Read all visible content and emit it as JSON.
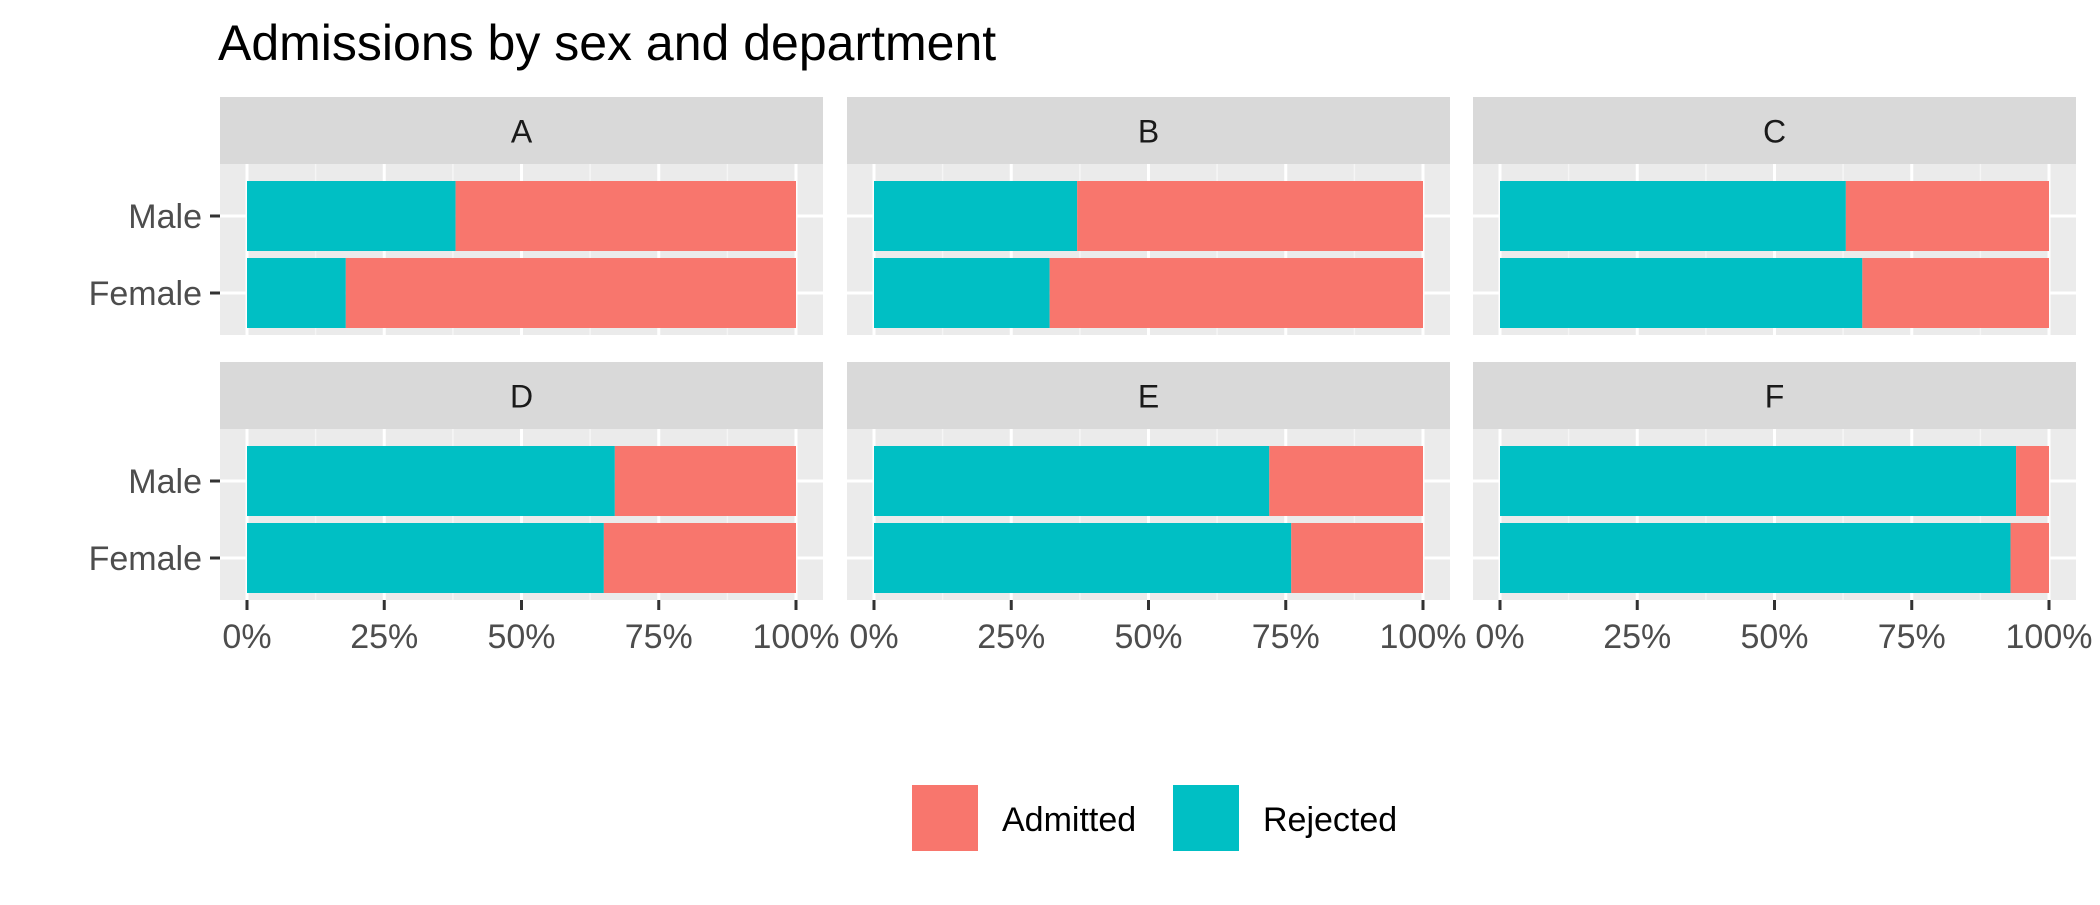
{
  "chart_data": {
    "type": "bar",
    "orientation": "horizontal",
    "stacked": true,
    "normalized": true,
    "title": "Admissions by sex and department",
    "categories": [
      "Male",
      "Female"
    ],
    "x_ticks": [
      "0%",
      "25%",
      "50%",
      "75%",
      "100%"
    ],
    "xlim": [
      0,
      100
    ],
    "grid": true,
    "legend_position": "bottom",
    "series": [
      {
        "name": "Admitted",
        "color": "#F8766D"
      },
      {
        "name": "Rejected",
        "color": "#00BFC4"
      }
    ],
    "panels": [
      {
        "label": "A",
        "values": {
          "Male": {
            "Rejected": 38,
            "Admitted": 62
          },
          "Female": {
            "Rejected": 18,
            "Admitted": 82
          }
        }
      },
      {
        "label": "B",
        "values": {
          "Male": {
            "Rejected": 37,
            "Admitted": 63
          },
          "Female": {
            "Rejected": 32,
            "Admitted": 68
          }
        }
      },
      {
        "label": "C",
        "values": {
          "Male": {
            "Rejected": 63,
            "Admitted": 37
          },
          "Female": {
            "Rejected": 66,
            "Admitted": 34
          }
        }
      },
      {
        "label": "D",
        "values": {
          "Male": {
            "Rejected": 67,
            "Admitted": 33
          },
          "Female": {
            "Rejected": 65,
            "Admitted": 35
          }
        }
      },
      {
        "label": "E",
        "values": {
          "Male": {
            "Rejected": 72,
            "Admitted": 28
          },
          "Female": {
            "Rejected": 76,
            "Admitted": 24
          }
        }
      },
      {
        "label": "F",
        "values": {
          "Male": {
            "Rejected": 94,
            "Admitted": 6
          },
          "Female": {
            "Rejected": 93,
            "Admitted": 7
          }
        }
      }
    ]
  },
  "colors": {
    "admitted": "#F8766D",
    "rejected": "#00BFC4",
    "panel_bg": "#EBEBEB",
    "strip_bg": "#D9D9D9"
  }
}
